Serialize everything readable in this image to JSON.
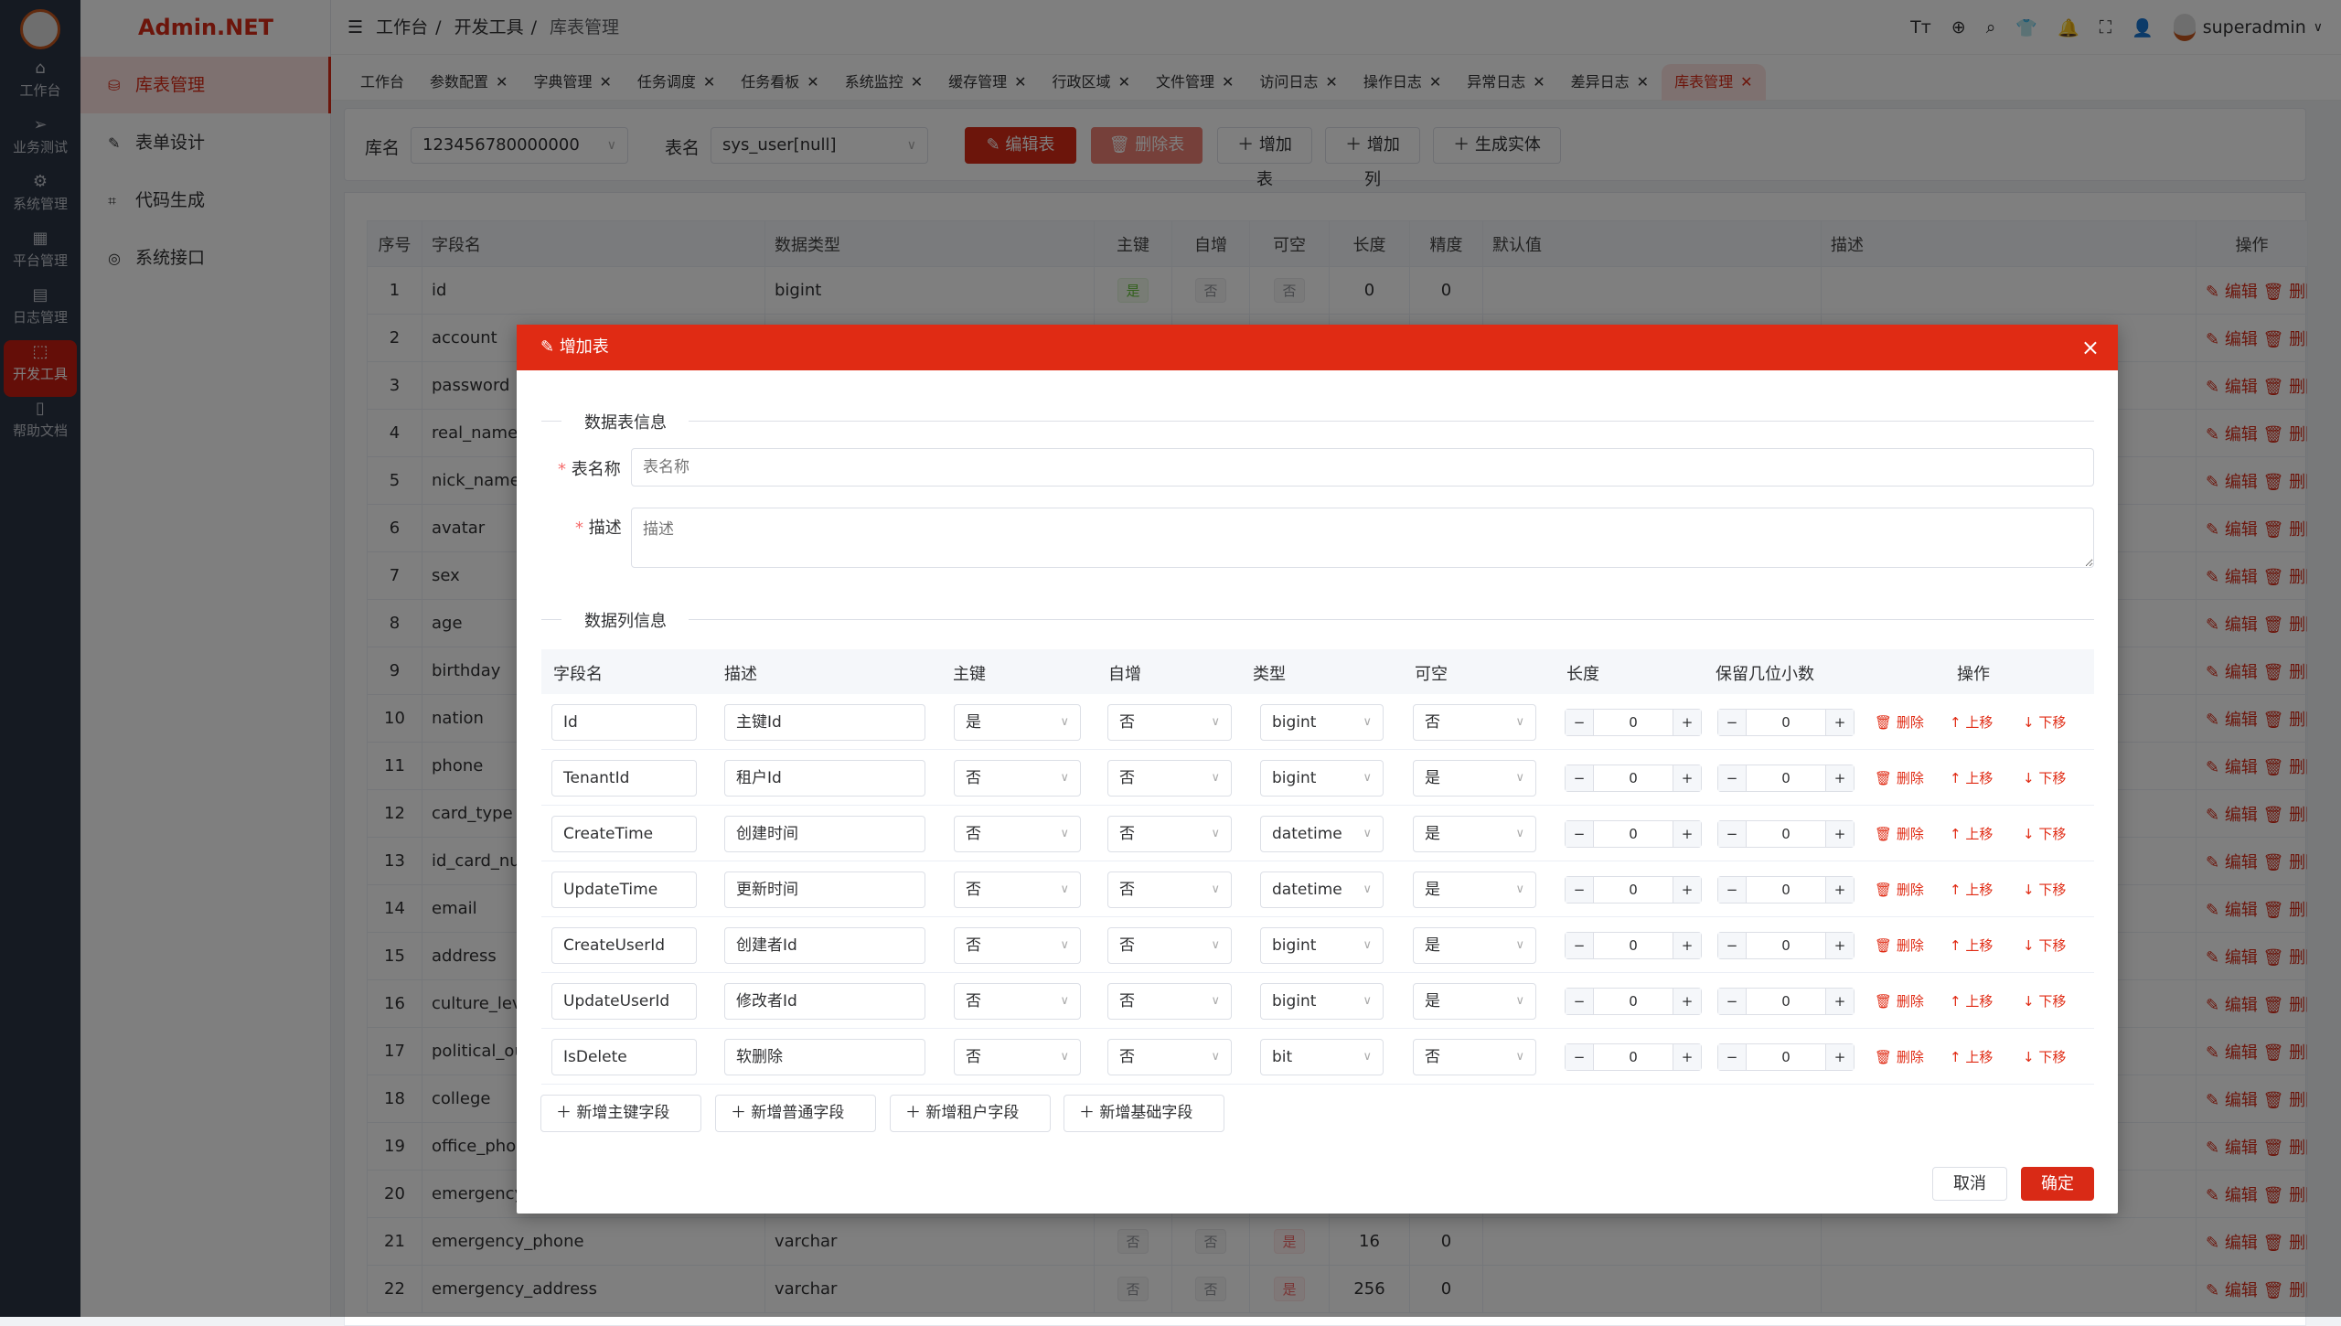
{
  "app": {
    "brand": "Admin.NET",
    "user": "superadmin",
    "accent": "#e02b14"
  },
  "nav": [
    {
      "icon": "home-icon",
      "glyph": "⌂",
      "label": "工作台"
    },
    {
      "icon": "send-icon",
      "glyph": "➢",
      "label": "业务测试"
    },
    {
      "icon": "gear-icon",
      "glyph": "⚙",
      "label": "系统管理"
    },
    {
      "icon": "grid-icon",
      "glyph": "▦",
      "label": "平台管理"
    },
    {
      "icon": "log-icon",
      "glyph": "▤",
      "label": "日志管理"
    },
    {
      "icon": "chip-icon",
      "glyph": "⬚",
      "label": "开发工具",
      "active": true
    },
    {
      "icon": "book-icon",
      "glyph": "▯",
      "label": "帮助文档"
    }
  ],
  "submenu": [
    {
      "icon": "database-icon",
      "glyph": "⛁",
      "label": "库表管理",
      "active": true
    },
    {
      "icon": "edit-icon",
      "glyph": "✎",
      "label": "表单设计"
    },
    {
      "icon": "crop-icon",
      "glyph": "⌗",
      "label": "代码生成"
    },
    {
      "icon": "lifebuoy-icon",
      "glyph": "◎",
      "label": "系统接口"
    }
  ],
  "breadcrumb": [
    "工作台",
    "开发工具",
    "库表管理"
  ],
  "header_icons": [
    "font-size-icon",
    "language-icon",
    "search-icon",
    "skin-icon",
    "bell-icon",
    "fullscreen-icon",
    "user-icon"
  ],
  "tabs": [
    {
      "label": "工作台",
      "closable": false
    },
    {
      "label": "参数配置"
    },
    {
      "label": "字典管理"
    },
    {
      "label": "任务调度"
    },
    {
      "label": "任务看板"
    },
    {
      "label": "系统监控"
    },
    {
      "label": "缓存管理"
    },
    {
      "label": "行政区域"
    },
    {
      "label": "文件管理"
    },
    {
      "label": "访问日志"
    },
    {
      "label": "操作日志"
    },
    {
      "label": "异常日志"
    },
    {
      "label": "差异日志"
    },
    {
      "label": "库表管理",
      "active": true
    }
  ],
  "toolbar": {
    "db_label": "库名",
    "db_value": "123456780000000",
    "table_label": "表名",
    "table_value": "sys_user[null]",
    "edit_table": "编辑表",
    "delete_table": "删除表",
    "add_table": "增加表",
    "add_column": "增加列",
    "gen_entity": "生成实体"
  },
  "table": {
    "headers": [
      "序号",
      "字段名",
      "数据类型",
      "主键",
      "自增",
      "可空",
      "长度",
      "精度",
      "默认值",
      "描述",
      "操作"
    ],
    "edit": "编辑",
    "delete": "删除",
    "rows": [
      {
        "no": "1",
        "name": "id",
        "type": "bigint",
        "pk": "是",
        "inc": "否",
        "null": "否",
        "len": "0",
        "prec": "0"
      },
      {
        "no": "2",
        "name": "account"
      },
      {
        "no": "3",
        "name": "password"
      },
      {
        "no": "4",
        "name": "real_name"
      },
      {
        "no": "5",
        "name": "nick_name"
      },
      {
        "no": "6",
        "name": "avatar"
      },
      {
        "no": "7",
        "name": "sex"
      },
      {
        "no": "8",
        "name": "age"
      },
      {
        "no": "9",
        "name": "birthday"
      },
      {
        "no": "10",
        "name": "nation"
      },
      {
        "no": "11",
        "name": "phone"
      },
      {
        "no": "12",
        "name": "card_type"
      },
      {
        "no": "13",
        "name": "id_card_nu"
      },
      {
        "no": "14",
        "name": "email"
      },
      {
        "no": "15",
        "name": "address"
      },
      {
        "no": "16",
        "name": "culture_lev"
      },
      {
        "no": "17",
        "name": "political_ou"
      },
      {
        "no": "18",
        "name": "college"
      },
      {
        "no": "19",
        "name": "office_phon"
      },
      {
        "no": "20",
        "name": "emergency"
      },
      {
        "no": "21",
        "name": "emergency_phone",
        "type": "varchar",
        "pk": "否",
        "inc": "否",
        "null": "是",
        "len": "16",
        "prec": "0"
      },
      {
        "no": "22",
        "name": "emergency_address",
        "type": "varchar",
        "pk": "否",
        "inc": "否",
        "null": "是",
        "len": "256",
        "prec": "0"
      }
    ]
  },
  "modal": {
    "title": "增加表",
    "section_table": "数据表信息",
    "name_label": "表名称",
    "name_placeholder": "表名称",
    "desc_label": "描述",
    "desc_placeholder": "描述",
    "section_columns": "数据列信息",
    "col_headers": [
      "字段名",
      "描述",
      "主键",
      "自增",
      "类型",
      "可空",
      "长度",
      "保留几位小数",
      "操作"
    ],
    "row_ops": {
      "delete": "删除",
      "up": "上移",
      "down": "下移"
    },
    "columns": [
      {
        "field": "Id",
        "desc": "主键Id",
        "pk": "是",
        "inc": "否",
        "type": "bigint",
        "null": "否",
        "len": "0",
        "dec": "0"
      },
      {
        "field": "TenantId",
        "desc": "租户Id",
        "pk": "否",
        "inc": "否",
        "type": "bigint",
        "null": "是",
        "len": "0",
        "dec": "0"
      },
      {
        "field": "CreateTime",
        "desc": "创建时间",
        "pk": "否",
        "inc": "否",
        "type": "datetime",
        "null": "是",
        "len": "0",
        "dec": "0"
      },
      {
        "field": "UpdateTime",
        "desc": "更新时间",
        "pk": "否",
        "inc": "否",
        "type": "datetime",
        "null": "是",
        "len": "0",
        "dec": "0"
      },
      {
        "field": "CreateUserId",
        "desc": "创建者Id",
        "pk": "否",
        "inc": "否",
        "type": "bigint",
        "null": "是",
        "len": "0",
        "dec": "0"
      },
      {
        "field": "UpdateUserId",
        "desc": "修改者Id",
        "pk": "否",
        "inc": "否",
        "type": "bigint",
        "null": "是",
        "len": "0",
        "dec": "0"
      },
      {
        "field": "IsDelete",
        "desc": "软删除",
        "pk": "否",
        "inc": "否",
        "type": "bit",
        "null": "否",
        "len": "0",
        "dec": "0"
      }
    ],
    "add_buttons": [
      "新增主键字段",
      "新增普通字段",
      "新增租户字段",
      "新增基础字段"
    ],
    "cancel": "取消",
    "confirm": "确定"
  }
}
